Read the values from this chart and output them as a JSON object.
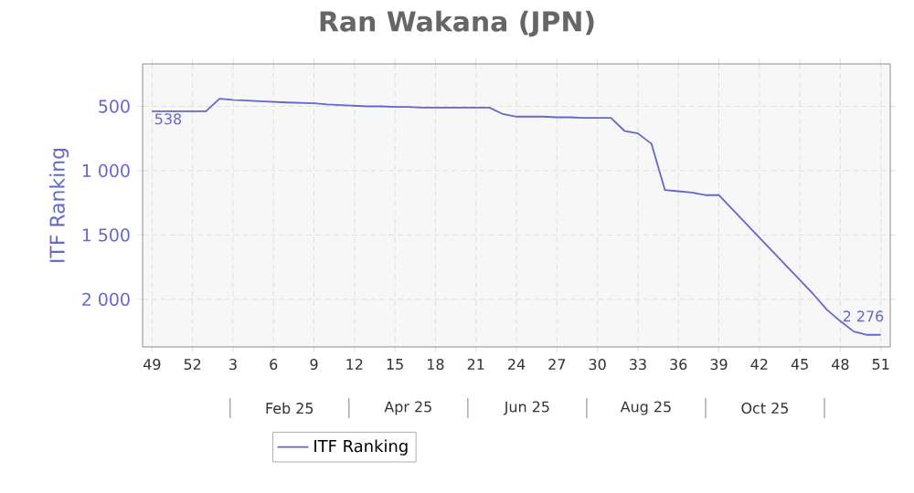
{
  "chart_data": {
    "type": "line",
    "title": "Ran Wakana (JPN)",
    "ylabel": "ITF Ranking",
    "categories": [
      "49",
      null,
      null,
      "52",
      null,
      null,
      "3",
      null,
      null,
      "6",
      null,
      null,
      "9",
      null,
      null,
      "12",
      null,
      null,
      "15",
      null,
      null,
      "18",
      null,
      null,
      "21",
      null,
      null,
      "24",
      null,
      null,
      "27",
      null,
      null,
      "30",
      null,
      null,
      "33",
      null,
      null,
      "36",
      null,
      null,
      "39",
      null,
      null,
      "42",
      null,
      null,
      "45",
      null,
      null,
      "48",
      null,
      null,
      "51"
    ],
    "series": [
      {
        "name": "ITF Ranking",
        "color": "#6666cc",
        "values": [
          538,
          538,
          538,
          538,
          538,
          440,
          450,
          455,
          460,
          465,
          470,
          473,
          476,
          485,
          490,
          495,
          500,
          500,
          505,
          505,
          510,
          510,
          510,
          510,
          510,
          510,
          560,
          580,
          580,
          580,
          585,
          585,
          590,
          590,
          590,
          690,
          710,
          790,
          1150,
          1160,
          1170,
          1190,
          1190,
          1300,
          1410,
          1520,
          1630,
          1740,
          1850,
          1960,
          2080,
          2170,
          2250,
          2276,
          2276
        ],
        "value_labels": [
          "538",
          null,
          null,
          null,
          null,
          null,
          null,
          null,
          null,
          null,
          null,
          null,
          null,
          null,
          null,
          null,
          null,
          null,
          null,
          null,
          null,
          null,
          null,
          null,
          null,
          null,
          null,
          null,
          null,
          null,
          null,
          null,
          null,
          null,
          null,
          null,
          null,
          null,
          null,
          null,
          null,
          null,
          null,
          null,
          null,
          null,
          null,
          null,
          null,
          null,
          null,
          null,
          null,
          null,
          "2 276"
        ]
      }
    ],
    "annotations": [
      "Feb 25",
      "Apr 25",
      "Jun 25",
      "Aug 25",
      "Oct 25"
    ],
    "ylim": [
      2370,
      170
    ],
    "yticks": [
      500,
      {
        "value": 1000,
        "label": "1 000"
      },
      {
        "value": 1500,
        "label": "1 500"
      },
      {
        "value": 2000,
        "label": "2 000"
      }
    ],
    "grid": true,
    "legend": "bottom",
    "marker": "none",
    "line_style": "solid"
  }
}
